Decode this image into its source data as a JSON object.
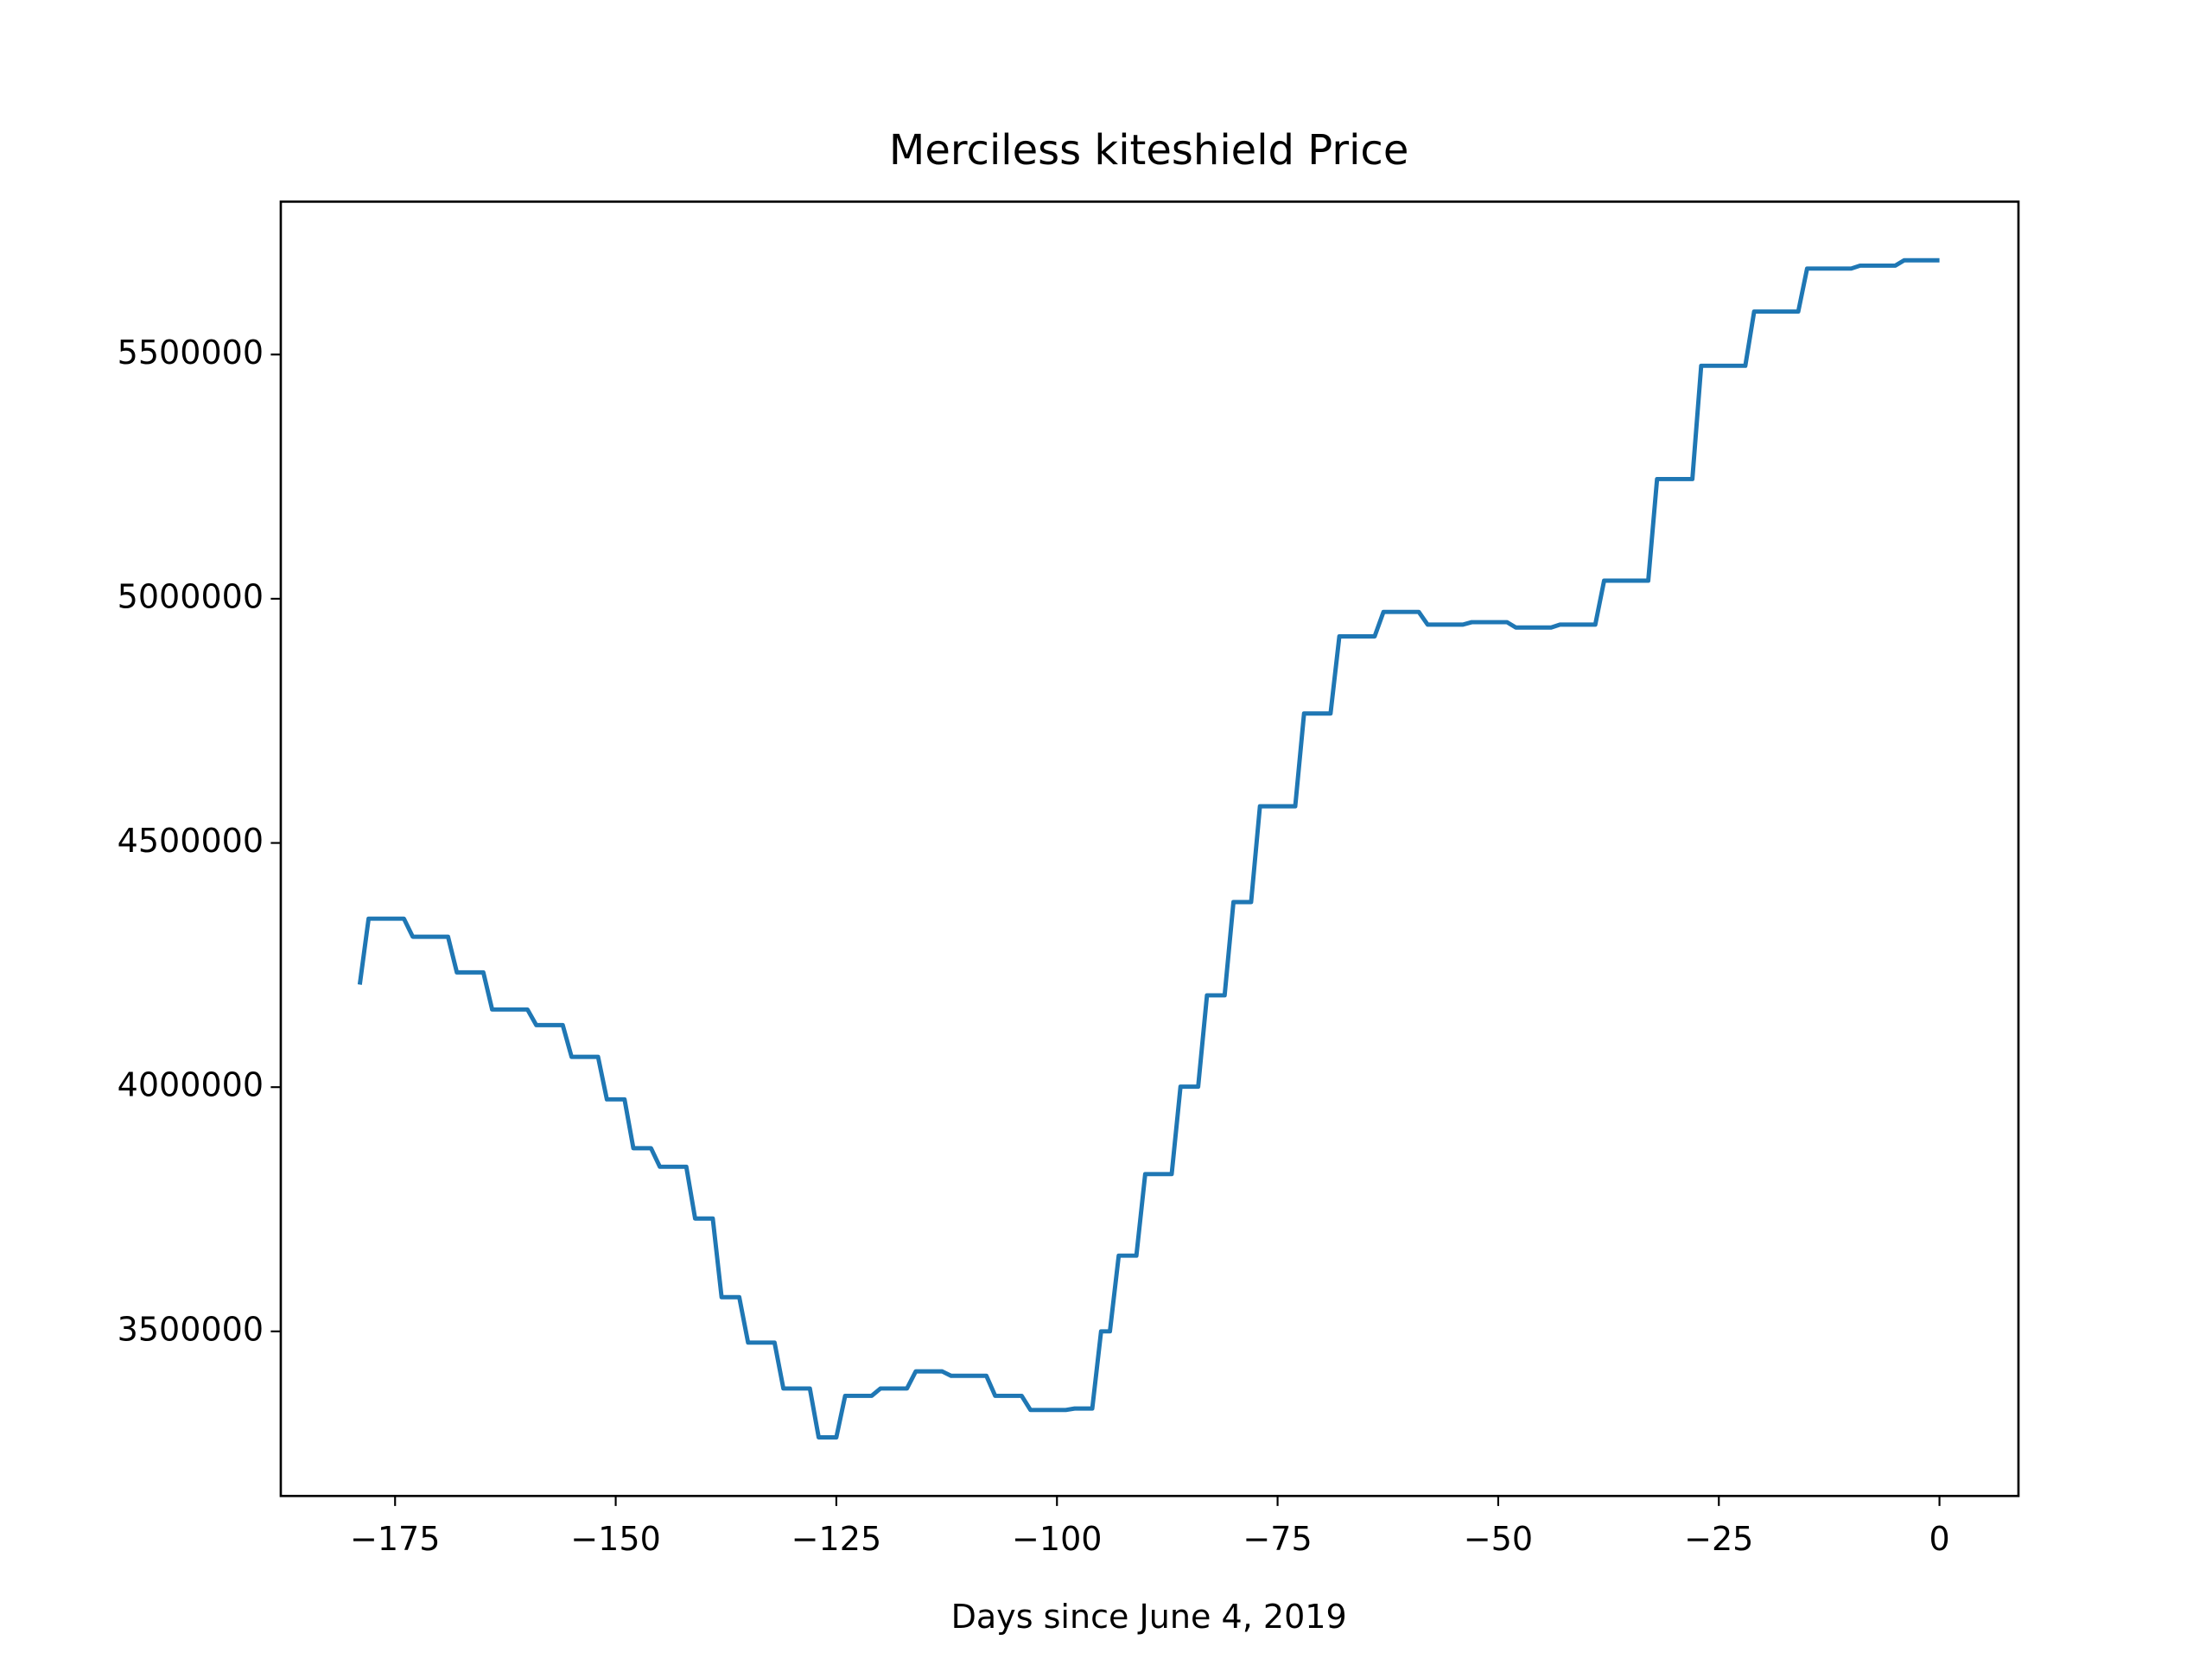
{
  "chart_data": {
    "type": "line",
    "title": "Merciless kiteshield Price",
    "x_label": "Days since June 4, 2019",
    "x": [
      -179,
      -178,
      -174,
      -173,
      -169,
      -168,
      -165,
      -164,
      -160,
      -159,
      -156,
      -155,
      -152,
      -151,
      -149,
      -148,
      -146,
      -145,
      -142,
      -141,
      -139,
      -138,
      -136,
      -135,
      -132,
      -131,
      -128,
      -127,
      -125,
      -124,
      -121,
      -120,
      -117,
      -116,
      -113,
      -112,
      -108,
      -107,
      -104,
      -103,
      -99,
      -98,
      -96,
      -95,
      -94,
      -93,
      -91,
      -90,
      -87,
      -86,
      -84,
      -83,
      -81,
      -80,
      -78,
      -77,
      -73,
      -72,
      -69,
      -68,
      -64,
      -63,
      -59,
      -58,
      -54,
      -53,
      -49,
      -48,
      -44,
      -43,
      -39,
      -38,
      -33,
      -32,
      -28,
      -27,
      -22,
      -21,
      -16,
      -15,
      -10,
      -9,
      -5,
      -4,
      0
    ],
    "series": [
      {
        "color": "#1f77b4",
        "values": [
          4210000,
          4345000,
          4345000,
          4308000,
          4308000,
          4235000,
          4235000,
          4159000,
          4159000,
          4127000,
          4127000,
          4062000,
          4062000,
          3975000,
          3975000,
          3875000,
          3875000,
          3837000,
          3837000,
          3731000,
          3731000,
          3570000,
          3570000,
          3477000,
          3477000,
          3383000,
          3383000,
          3283000,
          3283000,
          3368000,
          3368000,
          3383000,
          3383000,
          3418000,
          3418000,
          3409000,
          3409000,
          3368000,
          3368000,
          3339000,
          3339000,
          3342000,
          3342000,
          3500000,
          3500000,
          3655000,
          3655000,
          3822000,
          3822000,
          4001000,
          4001000,
          4188000,
          4188000,
          4379000,
          4379000,
          4575000,
          4575000,
          4765000,
          4765000,
          4923000,
          4923000,
          4973000,
          4973000,
          4947000,
          4947000,
          4952000,
          4952000,
          4941000,
          4941000,
          4947000,
          4947000,
          5037000,
          5037000,
          5245000,
          5245000,
          5477000,
          5477000,
          5588000,
          5588000,
          5676000,
          5676000,
          5682000,
          5682000,
          5693000,
          5693000
        ]
      }
    ],
    "xlim": [
      -187.95,
      8.95
    ],
    "xticks": [
      {
        "value": -175,
        "label": "−175"
      },
      {
        "value": -150,
        "label": "−150"
      },
      {
        "value": -125,
        "label": "−125"
      },
      {
        "value": -100,
        "label": "−100"
      },
      {
        "value": -75,
        "label": "−75"
      },
      {
        "value": -50,
        "label": "−50"
      },
      {
        "value": -25,
        "label": "−25"
      },
      0
    ],
    "ylim": [
      3163000,
      5813000
    ],
    "yticks": [
      3500000,
      4000000,
      4500000,
      5000000,
      5500000
    ]
  }
}
